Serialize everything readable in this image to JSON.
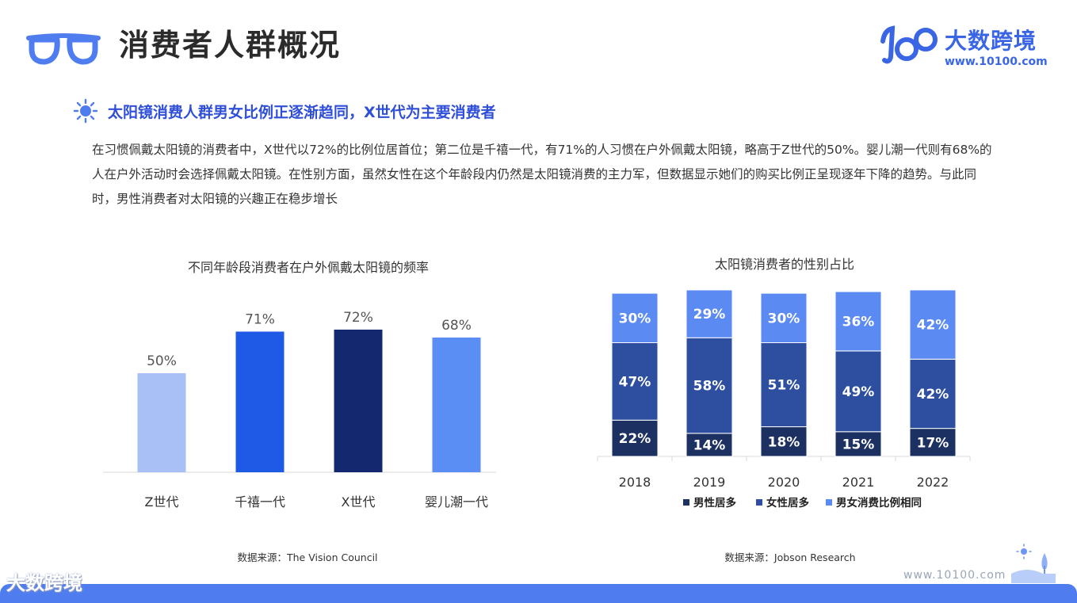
{
  "header": {
    "title": "消费者人群概况",
    "icon": "glasses-icon",
    "accent_color": "#4f7df0"
  },
  "brand": {
    "name": "大数跨境",
    "url": "www.10100.com",
    "color": "#3a66e6"
  },
  "section": {
    "icon": "sun-icon",
    "subtitle": "太阳镜消费人群男女比例正逐渐趋同，X世代为主要消费者",
    "body": "在习惯佩戴太阳镜的消费者中，X世代以72%的比例位居首位；第二位是千禧一代，有71%的人习惯在户外佩戴太阳镜，略高于Z世代的50%。婴儿潮一代则有68%的人在户外活动时会选择佩戴太阳镜。在性别方面，虽然女性在这个年龄段内仍然是太阳镜消费的主力军，但数据显示她们的购买比例正呈现逐年下降的趋势。与此同时，男性消费者对太阳镜的兴趣正在稳步增长"
  },
  "chart_data": [
    {
      "type": "bar",
      "title": "不同年龄段消费者在户外佩戴太阳镜的频率",
      "categories": [
        "Z世代",
        "千禧一代",
        "X世代",
        "婴儿潮一代"
      ],
      "values": [
        50,
        71,
        72,
        68
      ],
      "labels": [
        "50%",
        "71%",
        "72%",
        "68%"
      ],
      "colors": [
        "#a9c0f7",
        "#1f5ae6",
        "#13286e",
        "#5b8ef5"
      ],
      "ylim": [
        0,
        100
      ],
      "xlabel": "",
      "ylabel": "",
      "source": "数据来源：The Vision Council"
    },
    {
      "type": "bar",
      "stacked": true,
      "title": "太阳镜消费者的性别占比",
      "categories": [
        "2018",
        "2019",
        "2020",
        "2021",
        "2022"
      ],
      "series": [
        {
          "name": "男性居多",
          "values": [
            22,
            14,
            18,
            15,
            17
          ],
          "labels": [
            "22%",
            "14%",
            "18%",
            "15%",
            "17%"
          ],
          "color": "#1c3162"
        },
        {
          "name": "女性居多",
          "values": [
            47,
            58,
            51,
            49,
            42
          ],
          "labels": [
            "47%",
            "58%",
            "51%",
            "49%",
            "42%"
          ],
          "color": "#2e4fa0"
        },
        {
          "name": "男女消费比例相同",
          "values": [
            30,
            29,
            30,
            36,
            42
          ],
          "labels": [
            "30%",
            "29%",
            "30%",
            "36%",
            "42%"
          ],
          "color": "#5b8af3"
        }
      ],
      "legend_position": "bottom",
      "source": "数据来源：Jobson Research"
    }
  ],
  "footer": {
    "watermark": "大数跨境",
    "url": "www.10100.com",
    "band_color": "#4f7df0"
  }
}
